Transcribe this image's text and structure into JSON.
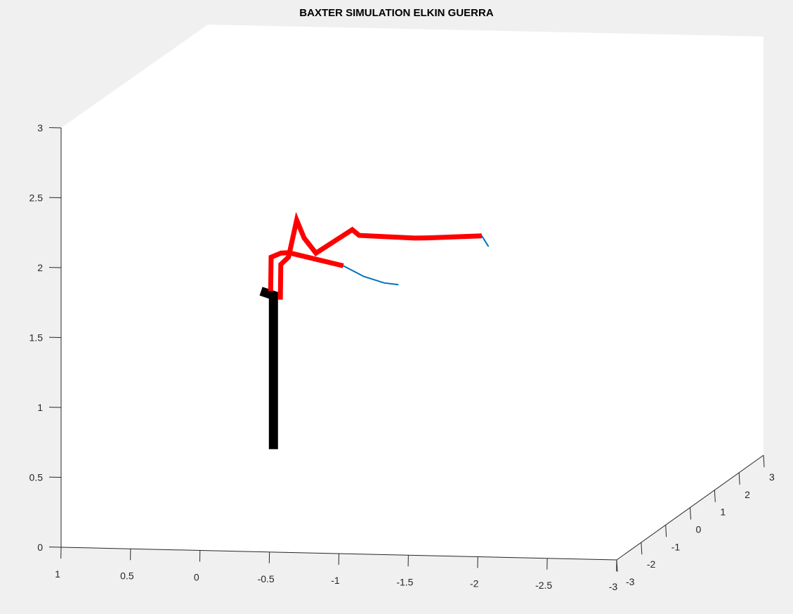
{
  "chart_data": {
    "type": "line",
    "title": "BAXTER SIMULATION ELKIN GUERRA",
    "xlabel": "",
    "ylabel": "",
    "zlabel": "",
    "xlim": [
      -3,
      1
    ],
    "ylim": [
      -3,
      3
    ],
    "zlim": [
      0,
      3
    ],
    "grid": false,
    "x_ticks": [
      "1",
      "0.5",
      "0",
      "-0.5",
      "-1",
      "-1.5",
      "-2",
      "-2.5",
      "-3"
    ],
    "y_ticks": [
      "-3",
      "-2",
      "-1",
      "0",
      "1",
      "2",
      "3"
    ],
    "z_ticks": [
      "0",
      "0.5",
      "1",
      "1.5",
      "2",
      "2.5",
      "3"
    ],
    "view": "3d-perspective",
    "colors": {
      "figure_bg": "#f0f0f0",
      "axes_bg": "#ffffff",
      "axis_line": "#262626",
      "arm_links": "#ff0000",
      "torso": "#000000",
      "trajectory": "#0072bd"
    },
    "series": [
      {
        "color": "#000000",
        "style": "torso-link",
        "points": [
          [
            0,
            0,
            0.35
          ],
          [
            0,
            0,
            1.45
          ],
          [
            0.1,
            0.06,
            1.47
          ]
        ]
      },
      {
        "color": "#ff0000",
        "style": "arm-link",
        "points": [
          [
            -0.05,
            0.0,
            1.42
          ],
          [
            -0.05,
            0.02,
            1.67
          ],
          [
            -0.1,
            0.05,
            1.72
          ],
          [
            -0.15,
            0.1,
            1.98
          ],
          [
            -0.2,
            0.12,
            1.85
          ],
          [
            -0.28,
            0.15,
            1.74
          ],
          [
            -0.55,
            0.1,
            1.92
          ],
          [
            -0.6,
            0.1,
            1.88
          ],
          [
            -1.0,
            0.1,
            1.87
          ],
          [
            -1.1,
            0.05,
            1.88
          ],
          [
            -1.5,
            0.0,
            1.91
          ]
        ]
      },
      {
        "color": "#ff0000",
        "style": "arm-link",
        "points": [
          [
            0.02,
            0.0,
            1.48
          ],
          [
            0.02,
            0.02,
            1.72
          ],
          [
            -0.05,
            0.03,
            1.75
          ],
          [
            -0.1,
            0.06,
            1.75
          ],
          [
            -0.5,
            0.02,
            1.67
          ]
        ]
      },
      {
        "color": "#0072bd",
        "style": "trajectory",
        "points": [
          [
            -0.5,
            0.02,
            1.67
          ],
          [
            -0.65,
            0.0,
            1.6
          ],
          [
            -0.8,
            -0.02,
            1.56
          ],
          [
            -0.9,
            -0.02,
            1.55
          ]
        ]
      },
      {
        "color": "#0072bd",
        "style": "trajectory",
        "points": [
          [
            -1.5,
            0.0,
            1.91
          ],
          [
            -1.55,
            -0.02,
            1.84
          ]
        ]
      }
    ]
  }
}
